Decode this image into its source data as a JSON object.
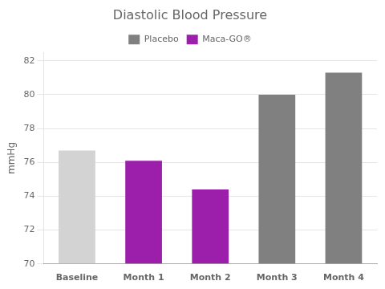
{
  "chart_data": {
    "type": "bar",
    "title": "Diastolic Blood Pressure",
    "ylabel": "mmHg",
    "categories": [
      "Baseline",
      "Month 1",
      "Month 2",
      "Month 3",
      "Month 4"
    ],
    "series": [
      {
        "color": "#d3d3d3",
        "values": [
          76.7,
          null,
          null,
          null,
          null
        ]
      },
      {
        "name": "Placebo",
        "color": "#808080",
        "values": [
          null,
          null,
          null,
          80.0,
          81.3
        ]
      },
      {
        "name": "Maca-GO®",
        "color": "#9b1faa",
        "values": [
          null,
          76.1,
          74.4,
          null,
          null
        ]
      }
    ],
    "ylim": [
      70,
      82.5
    ],
    "yticks": [
      70,
      72,
      74,
      76,
      78,
      80,
      82
    ],
    "grid": true,
    "legend": "top"
  }
}
